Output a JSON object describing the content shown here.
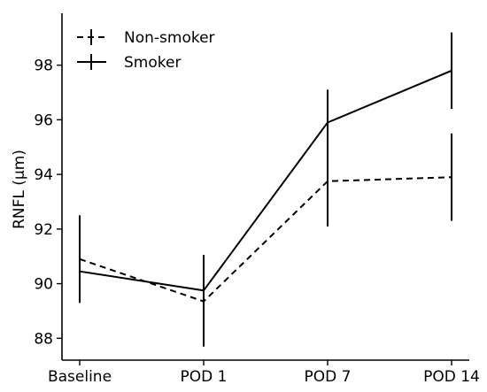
{
  "chart_data": {
    "type": "line",
    "title": "",
    "xlabel": "",
    "ylabel": "RNFL (µm)",
    "categories": [
      "Baseline",
      "POD 1",
      "POD 7",
      "POD 14"
    ],
    "ylim": [
      87.2,
      99.9
    ],
    "yticks": [
      88,
      90,
      92,
      94,
      96,
      98
    ],
    "grid": false,
    "legend_position": "top-left",
    "series": [
      {
        "name": "Non-smoker",
        "line_style": "dashed",
        "color": "#000000",
        "values": [
          90.9,
          89.35,
          93.75,
          93.9
        ],
        "error_low": [
          89.3,
          87.7,
          92.1,
          92.3
        ],
        "error_high": [
          92.5,
          91.05,
          95.4,
          95.5
        ]
      },
      {
        "name": "Smoker",
        "line_style": "solid",
        "color": "#000000",
        "values": [
          90.45,
          89.75,
          95.9,
          97.8
        ],
        "error_low": [
          89.3,
          87.7,
          92.1,
          96.4
        ],
        "error_high": [
          92.5,
          91.05,
          97.1,
          99.2
        ]
      }
    ]
  }
}
